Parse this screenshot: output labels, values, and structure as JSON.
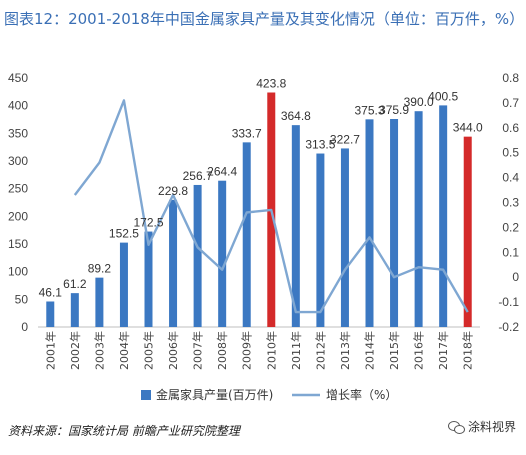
{
  "title": "图表12：2001-2018年中国金属家具产量及其变化情况（单位：百万件，%）",
  "source": "资料来源：国家统计局 前瞻产业研究院整理",
  "watermark": "涂料视界",
  "chart_data": {
    "type": "bar",
    "categories": [
      "2001年",
      "2002年",
      "2003年",
      "2004年",
      "2005年",
      "2006年",
      "2007年",
      "2008年",
      "2009年",
      "2010年",
      "2011年",
      "2012年",
      "2013年",
      "2014年",
      "2015年",
      "2016年",
      "2017年",
      "2018年"
    ],
    "series": [
      {
        "name": "金属家具产量(百万件)",
        "type": "bar",
        "axis": "left",
        "values": [
          46.1,
          61.2,
          89.2,
          152.5,
          172.5,
          229.8,
          256.7,
          264.4,
          333.7,
          423.8,
          364.8,
          313.5,
          322.7,
          375.3,
          375.9,
          390.0,
          400.5,
          344.0
        ],
        "labels": [
          "46.1",
          "61.2",
          "89.2",
          "152.5",
          "172.5",
          "229.8",
          "256.7",
          "264.4",
          "333.7",
          "423.8",
          "364.8",
          "313.5",
          "322.7",
          "375.3",
          "375.9",
          "390.0",
          "400.5",
          "344.0"
        ],
        "highlight": [
          "2010年",
          "2018年"
        ]
      },
      {
        "name": "增长率（%）",
        "type": "line",
        "axis": "right",
        "values": [
          null,
          0.33,
          0.46,
          0.71,
          0.13,
          0.33,
          0.12,
          0.03,
          0.26,
          0.27,
          -0.14,
          -0.14,
          0.03,
          0.16,
          0.0,
          0.04,
          0.03,
          -0.14
        ]
      }
    ],
    "y_left": {
      "ylim": [
        0,
        450
      ],
      "ticks": [
        "0",
        "50",
        "100",
        "150",
        "200",
        "250",
        "300",
        "350",
        "400",
        "450"
      ]
    },
    "y_right": {
      "ylim": [
        -0.2,
        0.8
      ],
      "ticks": [
        "-0.2",
        "-0.1",
        "0",
        "0.1",
        "0.2",
        "0.3",
        "0.4",
        "0.5",
        "0.6",
        "0.7",
        "0.8"
      ]
    },
    "legend": "bottom",
    "colors": {
      "bar": "#3b78c2",
      "highlight": "#d42a2a",
      "line": "#7fa7d2"
    }
  }
}
